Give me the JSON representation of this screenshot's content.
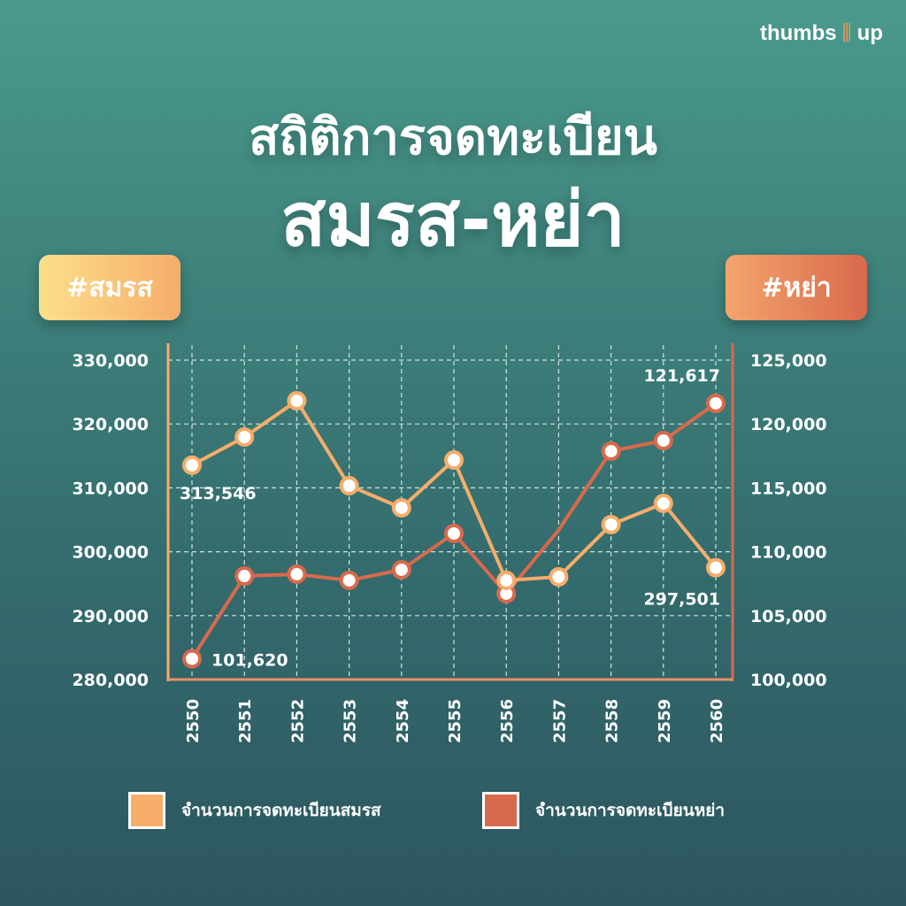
{
  "brand": {
    "name_left": "thumbs",
    "name_right": "up",
    "icon": "thumbs-up-bars-icon"
  },
  "title": {
    "line1": "สถิติการจดทะเบียน",
    "line2": "สมรส-หย่า"
  },
  "badges": {
    "left": "#สมรส",
    "right": "#หย่า"
  },
  "colors": {
    "marriage": "#f6ad6a",
    "divorce": "#d9694c",
    "grid": "#cfe3df"
  },
  "chart_data": {
    "type": "line",
    "x": [
      "2550",
      "2551",
      "2552",
      "2553",
      "2554",
      "2555",
      "2556",
      "2557",
      "2558",
      "2559",
      "2560"
    ],
    "grid": true,
    "y_left": {
      "lim": [
        280000,
        330000
      ],
      "ticks": [
        "280,000",
        "290,000",
        "300,000",
        "310,000",
        "320,000",
        "330,000"
      ]
    },
    "y_right": {
      "lim": [
        100000,
        125000
      ],
      "ticks": [
        "100,000",
        "105,000",
        "110,000",
        "115,000",
        "120,000",
        "125,000"
      ]
    },
    "series": [
      {
        "name": "จำนวนการจดทะเบียนสมรส",
        "axis": "left",
        "values": [
          313546,
          317950,
          323630,
          310330,
          306870,
          314350,
          295510,
          296070,
          304240,
          307560,
          297501
        ],
        "labels": [
          {
            "index": 0,
            "text": "313,546"
          },
          {
            "index": 10,
            "text": "297,501"
          }
        ],
        "unmarked": []
      },
      {
        "name": "จำนวนการจดทะเบียนหย่า",
        "axis": "right",
        "values": [
          101620,
          108100,
          108240,
          107760,
          108590,
          111430,
          106720,
          111700,
          117870,
          118700,
          121617
        ],
        "labels": [
          {
            "index": 0,
            "text": "101,620"
          },
          {
            "index": 10,
            "text": "121,617"
          }
        ],
        "unmarked": [
          7
        ]
      }
    ],
    "legend": "bottom"
  }
}
